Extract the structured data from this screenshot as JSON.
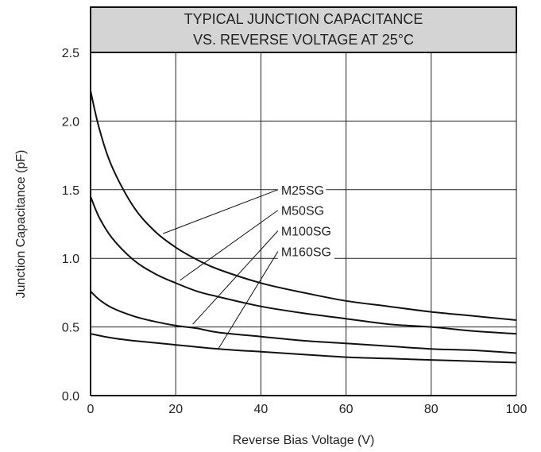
{
  "chart_data": {
    "type": "line",
    "title_lines": [
      "TYPICAL JUNCTION CAPACITANCE",
      "VS. REVERSE VOLTAGE AT 25°C"
    ],
    "xlabel": "Reverse Bias Voltage (V)",
    "ylabel": "Junction Capacitance (pF)",
    "xlim": [
      0,
      100
    ],
    "ylim": [
      0,
      2.5
    ],
    "x_ticks": [
      0,
      20,
      40,
      60,
      80,
      100
    ],
    "y_ticks": [
      0.0,
      0.5,
      1.0,
      1.5,
      2.0,
      2.5
    ],
    "x_tick_labels": [
      "0",
      "20",
      "40",
      "60",
      "80",
      "100"
    ],
    "y_tick_labels": [
      "0.0",
      "0.5",
      "1.0",
      "1.5",
      "2.0",
      "2.5"
    ],
    "grid": true,
    "series": [
      {
        "name": "M25SG",
        "label_at": [
          0.44,
          1.5
        ],
        "callout_to": [
          17,
          1.18
        ],
        "x": [
          0,
          2,
          5,
          10,
          15,
          20,
          25,
          30,
          40,
          50,
          60,
          70,
          80,
          90,
          100
        ],
        "y": [
          2.22,
          1.95,
          1.67,
          1.38,
          1.2,
          1.08,
          0.99,
          0.92,
          0.82,
          0.75,
          0.69,
          0.65,
          0.61,
          0.58,
          0.55
        ]
      },
      {
        "name": "M50SG",
        "label_at": [
          0.44,
          1.35
        ],
        "callout_to": [
          21,
          0.84
        ],
        "x": [
          0,
          2,
          5,
          10,
          15,
          20,
          25,
          30,
          40,
          50,
          60,
          70,
          80,
          90,
          100
        ],
        "y": [
          1.45,
          1.3,
          1.15,
          0.99,
          0.89,
          0.82,
          0.76,
          0.72,
          0.65,
          0.6,
          0.56,
          0.52,
          0.5,
          0.47,
          0.45
        ]
      },
      {
        "name": "M100SG",
        "label_at": [
          0.44,
          1.2
        ],
        "callout_to": [
          24,
          0.52
        ],
        "x": [
          0,
          2,
          5,
          10,
          15,
          20,
          25,
          30,
          40,
          50,
          60,
          70,
          80,
          90,
          100
        ],
        "y": [
          0.76,
          0.7,
          0.64,
          0.58,
          0.54,
          0.51,
          0.49,
          0.46,
          0.43,
          0.4,
          0.38,
          0.36,
          0.34,
          0.33,
          0.31
        ]
      },
      {
        "name": "M160SG",
        "label_at": [
          0.44,
          1.05
        ],
        "callout_to": [
          30,
          0.34
        ],
        "x": [
          0,
          5,
          10,
          20,
          30,
          40,
          50,
          60,
          70,
          80,
          90,
          100
        ],
        "y": [
          0.45,
          0.42,
          0.4,
          0.37,
          0.34,
          0.32,
          0.3,
          0.28,
          0.27,
          0.26,
          0.25,
          0.24
        ]
      }
    ]
  }
}
